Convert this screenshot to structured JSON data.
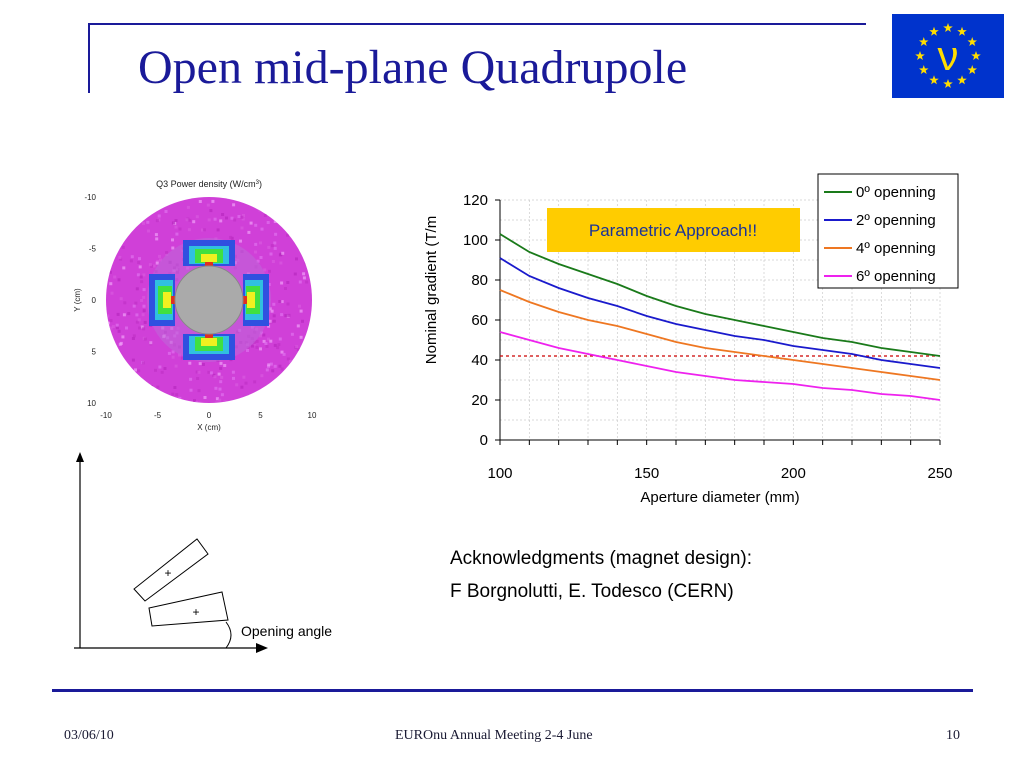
{
  "slide": {
    "title": "Open mid-plane Quadrupole",
    "logo_letter": "ν",
    "flag_color": "#0033cc",
    "star_color": "#ffdd00",
    "rule_color": "#1a1a99"
  },
  "power_map": {
    "title": "Q3 Power density (W/cm",
    "title_sup": "3",
    "title_end": ")",
    "ylabel": "Y (cm)",
    "xlabel": "X (cm)",
    "yticks": [
      "-10",
      "-5",
      "0",
      "5",
      "10"
    ],
    "xticks": [
      "-10",
      "-5",
      "0",
      "5",
      "10"
    ]
  },
  "diagram": {
    "label": "Opening angle",
    "marker": "+"
  },
  "chart_data": {
    "type": "line",
    "xlabel": "Aperture diameter (mm)",
    "ylabel": "Nominal gradient (T/m",
    "xlim": [
      100,
      250
    ],
    "ylim": [
      0,
      120
    ],
    "xticks": [
      "100",
      "150",
      "200",
      "250"
    ],
    "yticks": [
      "0",
      "20",
      "40",
      "60",
      "80",
      "100",
      "120"
    ],
    "grid": true,
    "legend_position": "top-right",
    "x": [
      100,
      110,
      120,
      130,
      140,
      150,
      160,
      170,
      180,
      190,
      200,
      210,
      220,
      230,
      240,
      250
    ],
    "series": [
      {
        "name": "0º openning",
        "color": "#1a7a1a",
        "values": [
          103,
          94,
          88,
          83,
          78,
          72,
          67,
          63,
          60,
          57,
          54,
          51,
          49,
          46,
          44,
          42
        ]
      },
      {
        "name": "2º openning",
        "color": "#1a1acc",
        "values": [
          91,
          82,
          76,
          71,
          67,
          62,
          58,
          55,
          52,
          50,
          47,
          45,
          43,
          40,
          38,
          36
        ]
      },
      {
        "name": "4º openning",
        "color": "#ee7722",
        "values": [
          75,
          69,
          64,
          60,
          57,
          53,
          49,
          46,
          44,
          42,
          40,
          38,
          36,
          34,
          32,
          30
        ]
      },
      {
        "name": "6º openning",
        "color": "#ee22ee",
        "values": [
          54,
          50,
          46,
          43,
          40,
          37,
          34,
          32,
          30,
          29,
          28,
          26,
          25,
          23,
          22,
          20
        ]
      }
    ],
    "reference_line": {
      "y": 42,
      "color": "#cc0000"
    },
    "annotation": {
      "text": "Parametric Approach!!",
      "background": "#ffcc00",
      "color": "#1a3399"
    }
  },
  "acknowledgments": {
    "line1": "Acknowledgments (magnet design):",
    "line2": "F Borgnolutti, E. Todesco (CERN)"
  },
  "footer": {
    "date": "03/06/10",
    "event": "EUROnu Annual Meeting 2-4  June",
    "page": "10"
  }
}
